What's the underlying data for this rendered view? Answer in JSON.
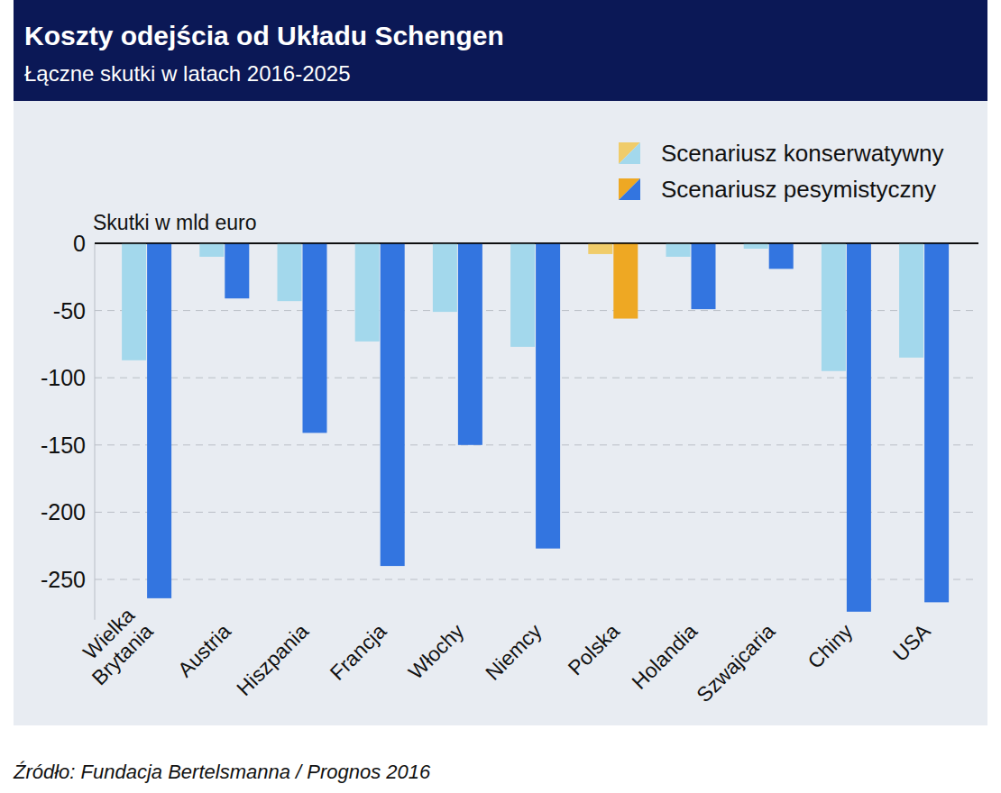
{
  "chart_data": {
    "type": "bar",
    "title": "Koszty odejścia od Układu Schengen",
    "subtitle": "Łączne skutki w latach 2016-2025",
    "y_label": "Skutki w mld euro",
    "source": "Źródło: Fundacja Bertelsmanna / Prognos 2016",
    "categories": [
      "Wielka Brytania",
      "Austria",
      "Hiszpania",
      "Francja",
      "Włochy",
      "Niemcy",
      "Polska",
      "Holandia",
      "Szwajcaria",
      "Chiny",
      "USA"
    ],
    "series": [
      {
        "name": "Scenariusz konserwatywny",
        "color": "#a3d8ec",
        "colors": [
          "#a3d8ec",
          "#a3d8ec",
          "#a3d8ec",
          "#a3d8ec",
          "#a3d8ec",
          "#a3d8ec",
          "#f0cc6a",
          "#a3d8ec",
          "#a3d8ec",
          "#a3d8ec",
          "#a3d8ec"
        ],
        "values": [
          -87,
          -10,
          -43,
          -73,
          -51,
          -77,
          -8,
          -10,
          -4,
          -95,
          -85
        ]
      },
      {
        "name": "Scenariusz pesymistyczny",
        "color": "#3375e0",
        "colors": [
          "#3375e0",
          "#3375e0",
          "#3375e0",
          "#3375e0",
          "#3375e0",
          "#3375e0",
          "#eea823",
          "#3375e0",
          "#3375e0",
          "#3375e0",
          "#3375e0"
        ],
        "values": [
          -264,
          -41,
          -141,
          -240,
          -150,
          -227,
          -56,
          -49,
          -19,
          -274,
          -267
        ]
      }
    ],
    "ylim": [
      -280,
      0
    ],
    "yticks": [
      0,
      -50,
      -100,
      -150,
      -200,
      -250
    ],
    "grid": true,
    "legend": "upper right"
  }
}
